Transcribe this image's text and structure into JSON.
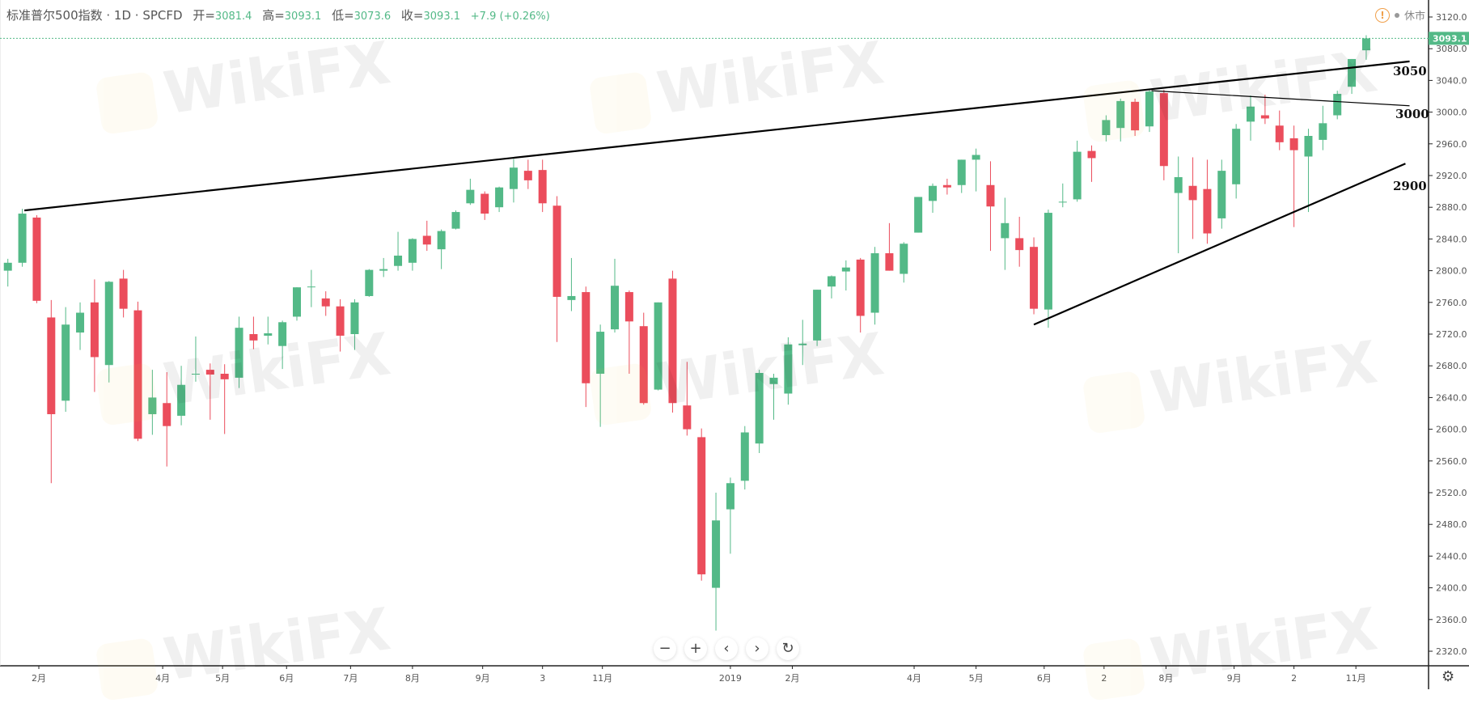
{
  "header": {
    "symbol": "标准普尔500指数 · 1D · SPCFD",
    "open_label": "开=",
    "open": "3081.4",
    "high_label": "高=",
    "high": "3093.1",
    "low_label": "低=",
    "low": "3073.6",
    "close_label": "收=",
    "close": "3093.1",
    "change": "+7.9 (+0.26%)"
  },
  "status": {
    "icon": "warning-icon",
    "market_state": "休市"
  },
  "last_price": "3093.1",
  "watermark": "WikiFX",
  "nav_buttons": [
    {
      "icon": "zoom-out-icon",
      "glyph": "−"
    },
    {
      "icon": "zoom-in-icon",
      "glyph": "+"
    },
    {
      "icon": "scroll-left-icon",
      "glyph": "‹"
    },
    {
      "icon": "scroll-right-icon",
      "glyph": "›"
    },
    {
      "icon": "reset-icon",
      "glyph": "↻"
    }
  ],
  "settings_icon": "gear-icon",
  "colors": {
    "up": "#53b987",
    "down": "#eb4d5c",
    "trendline": "#000000",
    "last_price_bg": "#53b987"
  },
  "chart_data": {
    "type": "candlestick",
    "interval_shown": "1D",
    "note_granularity": "weekly OHLC approximation",
    "ylim": [
      2300,
      3140
    ],
    "y_ticks": [
      2320,
      2360,
      2400,
      2440,
      2480,
      2520,
      2560,
      2600,
      2640,
      2680,
      2720,
      2760,
      2800,
      2840,
      2880,
      2920,
      2960,
      3000,
      3040,
      3080,
      3120
    ],
    "x_ticks": [
      {
        "date": "2018-02-01",
        "label": "2月"
      },
      {
        "date": "2018-04-02",
        "label": "4月"
      },
      {
        "date": "2018-05-01",
        "label": "5月"
      },
      {
        "date": "2018-06-01",
        "label": "6月"
      },
      {
        "date": "2018-07-02",
        "label": "7月"
      },
      {
        "date": "2018-08-01",
        "label": "8月"
      },
      {
        "date": "2018-09-04",
        "label": "9月"
      },
      {
        "date": "2018-10-03",
        "label": "3"
      },
      {
        "date": "2018-11-01",
        "label": "11月"
      },
      {
        "date": "2019-01-02",
        "label": "2019"
      },
      {
        "date": "2019-02-01",
        "label": "2月"
      },
      {
        "date": "2019-04-01",
        "label": "4月"
      },
      {
        "date": "2019-05-01",
        "label": "5月"
      },
      {
        "date": "2019-06-03",
        "label": "6月"
      },
      {
        "date": "2019-07-02",
        "label": "2"
      },
      {
        "date": "2019-08-01",
        "label": "8月"
      },
      {
        "date": "2019-09-03",
        "label": "9月"
      },
      {
        "date": "2019-10-02",
        "label": "2"
      },
      {
        "date": "2019-11-01",
        "label": "11月"
      }
    ],
    "candles_columns": [
      "week_start",
      "open",
      "high",
      "low",
      "close"
    ],
    "candles": [
      [
        "2018-01-15",
        2800,
        2815,
        2780,
        2810
      ],
      [
        "2018-01-22",
        2810,
        2878,
        2805,
        2872
      ],
      [
        "2018-01-29",
        2867,
        2870,
        2759,
        2762
      ],
      [
        "2018-02-05",
        2741,
        2763,
        2532,
        2619
      ],
      [
        "2018-02-12",
        2636,
        2754,
        2622,
        2732
      ],
      [
        "2018-02-19",
        2722,
        2760,
        2700,
        2747
      ],
      [
        "2018-02-26",
        2760,
        2789,
        2647,
        2691
      ],
      [
        "2018-03-05",
        2681,
        2787,
        2659,
        2786
      ],
      [
        "2018-03-12",
        2790,
        2801,
        2741,
        2752
      ],
      [
        "2018-03-19",
        2750,
        2761,
        2585,
        2588
      ],
      [
        "2018-03-26",
        2619,
        2675,
        2593,
        2640
      ],
      [
        "2018-04-02",
        2633,
        2672,
        2553,
        2604
      ],
      [
        "2018-04-09",
        2617,
        2680,
        2605,
        2656
      ],
      [
        "2018-04-16",
        2670,
        2717,
        2660,
        2670
      ],
      [
        "2018-04-23",
        2675,
        2683,
        2612,
        2669
      ],
      [
        "2018-04-30",
        2670,
        2682,
        2594,
        2663
      ],
      [
        "2018-05-07",
        2665,
        2742,
        2652,
        2728
      ],
      [
        "2018-05-14",
        2720,
        2742,
        2701,
        2712
      ],
      [
        "2018-05-21",
        2718,
        2742,
        2707,
        2721
      ],
      [
        "2018-05-28",
        2705,
        2737,
        2676,
        2735
      ],
      [
        "2018-06-04",
        2742,
        2779,
        2737,
        2779
      ],
      [
        "2018-06-11",
        2780,
        2801,
        2754,
        2780
      ],
      [
        "2018-06-18",
        2765,
        2774,
        2743,
        2755
      ],
      [
        "2018-06-25",
        2755,
        2764,
        2698,
        2718
      ],
      [
        "2018-07-02",
        2720,
        2764,
        2700,
        2760
      ],
      [
        "2018-07-09",
        2768,
        2802,
        2767,
        2801
      ],
      [
        "2018-07-16",
        2800,
        2816,
        2792,
        2802
      ],
      [
        "2018-07-23",
        2806,
        2849,
        2800,
        2819
      ],
      [
        "2018-07-30",
        2810,
        2841,
        2800,
        2840
      ],
      [
        "2018-08-06",
        2844,
        2863,
        2825,
        2833
      ],
      [
        "2018-08-13",
        2827,
        2852,
        2802,
        2850
      ],
      [
        "2018-08-20",
        2853,
        2876,
        2852,
        2874
      ],
      [
        "2018-08-27",
        2885,
        2916,
        2883,
        2902
      ],
      [
        "2018-09-03",
        2897,
        2900,
        2864,
        2872
      ],
      [
        "2018-09-10",
        2880,
        2906,
        2874,
        2905
      ],
      [
        "2018-09-17",
        2903,
        2941,
        2886,
        2930
      ],
      [
        "2018-09-24",
        2926,
        2940,
        2903,
        2914
      ],
      [
        "2018-10-01",
        2927,
        2940,
        2874,
        2885
      ],
      [
        "2018-10-08",
        2882,
        2894,
        2710,
        2767
      ],
      [
        "2018-10-15",
        2763,
        2816,
        2749,
        2768
      ],
      [
        "2018-10-22",
        2773,
        2780,
        2628,
        2658
      ],
      [
        "2018-10-29",
        2670,
        2732,
        2603,
        2723
      ],
      [
        "2018-11-05",
        2726,
        2815,
        2722,
        2781
      ],
      [
        "2018-11-12",
        2773,
        2775,
        2670,
        2736
      ],
      [
        "2018-11-19",
        2730,
        2747,
        2631,
        2633
      ],
      [
        "2018-11-26",
        2650,
        2760,
        2649,
        2760
      ],
      [
        "2018-12-03",
        2790,
        2800,
        2621,
        2633
      ],
      [
        "2018-12-10",
        2630,
        2685,
        2592,
        2600
      ],
      [
        "2018-12-17",
        2590,
        2601,
        2409,
        2417
      ],
      [
        "2018-12-24",
        2400,
        2520,
        2346,
        2485
      ],
      [
        "2018-12-31",
        2499,
        2539,
        2443,
        2532
      ],
      [
        "2019-01-07",
        2535,
        2604,
        2524,
        2596
      ],
      [
        "2019-01-14",
        2582,
        2675,
        2570,
        2671
      ],
      [
        "2019-01-21",
        2657,
        2670,
        2612,
        2665
      ],
      [
        "2019-01-28",
        2645,
        2716,
        2631,
        2707
      ],
      [
        "2019-02-04",
        2706,
        2738,
        2681,
        2708
      ],
      [
        "2019-02-11",
        2712,
        2776,
        2705,
        2776
      ],
      [
        "2019-02-18",
        2780,
        2794,
        2765,
        2793
      ],
      [
        "2019-02-25",
        2799,
        2813,
        2775,
        2804
      ],
      [
        "2019-03-04",
        2814,
        2816,
        2722,
        2743
      ],
      [
        "2019-03-11",
        2747,
        2830,
        2732,
        2822
      ],
      [
        "2019-03-18",
        2822,
        2860,
        2800,
        2800
      ],
      [
        "2019-03-25",
        2796,
        2836,
        2785,
        2834
      ],
      [
        "2019-04-01",
        2848,
        2893,
        2848,
        2893
      ],
      [
        "2019-04-08",
        2888,
        2910,
        2873,
        2907
      ],
      [
        "2019-04-15",
        2908,
        2916,
        2896,
        2905
      ],
      [
        "2019-04-22",
        2908,
        2940,
        2898,
        2940
      ],
      [
        "2019-04-29",
        2940,
        2954,
        2900,
        2946
      ],
      [
        "2019-05-06",
        2908,
        2938,
        2825,
        2881
      ],
      [
        "2019-05-13",
        2841,
        2892,
        2801,
        2860
      ],
      [
        "2019-05-20",
        2841,
        2868,
        2805,
        2826
      ],
      [
        "2019-05-27",
        2830,
        2842,
        2745,
        2752
      ],
      [
        "2019-06-03",
        2751,
        2877,
        2728,
        2873
      ],
      [
        "2019-06-10",
        2886,
        2910,
        2880,
        2887
      ],
      [
        "2019-06-17",
        2890,
        2964,
        2887,
        2950
      ],
      [
        "2019-06-24",
        2951,
        2958,
        2912,
        2942
      ],
      [
        "2019-07-01",
        2971,
        2996,
        2963,
        2990
      ],
      [
        "2019-07-08",
        2980,
        3017,
        2963,
        3014
      ],
      [
        "2019-07-15",
        3013,
        3017,
        2970,
        2977
      ],
      [
        "2019-07-22",
        2982,
        3029,
        2975,
        3026
      ],
      [
        "2019-07-29",
        3024,
        3028,
        2914,
        2932
      ],
      [
        "2019-08-05",
        2898,
        2944,
        2822,
        2918
      ],
      [
        "2019-08-12",
        2907,
        2943,
        2840,
        2889
      ],
      [
        "2019-08-19",
        2903,
        2940,
        2834,
        2847
      ],
      [
        "2019-08-26",
        2866,
        2940,
        2853,
        2926
      ],
      [
        "2019-09-02",
        2909,
        2985,
        2891,
        2979
      ],
      [
        "2019-09-09",
        2988,
        3021,
        2964,
        3007
      ],
      [
        "2019-09-16",
        2996,
        3022,
        2985,
        2992
      ],
      [
        "2019-09-23",
        2983,
        3002,
        2952,
        2962
      ],
      [
        "2019-09-30",
        2967,
        2983,
        2855,
        2952
      ],
      [
        "2019-10-07",
        2944,
        2979,
        2874,
        2970
      ],
      [
        "2019-10-14",
        2965,
        3008,
        2952,
        2986
      ],
      [
        "2019-10-21",
        2996,
        3027,
        2991,
        3023
      ],
      [
        "2019-10-28",
        3032,
        3067,
        3023,
        3067
      ],
      [
        "2019-11-04",
        3078,
        3097,
        3066,
        3093
      ]
    ],
    "trendlines": [
      {
        "from": [
          "2018-01-25",
          2876
        ],
        "to": [
          "2019-11-27",
          3064
        ],
        "weight": "bold"
      },
      {
        "from": [
          "2019-07-25",
          3027
        ],
        "to": [
          "2019-11-27",
          3008
        ],
        "weight": "thin"
      },
      {
        "from": [
          "2019-05-29",
          2732
        ],
        "to": [
          "2019-11-25",
          2935
        ],
        "weight": "bold"
      }
    ],
    "annotations": [
      "3050",
      "3000",
      "2900"
    ]
  }
}
